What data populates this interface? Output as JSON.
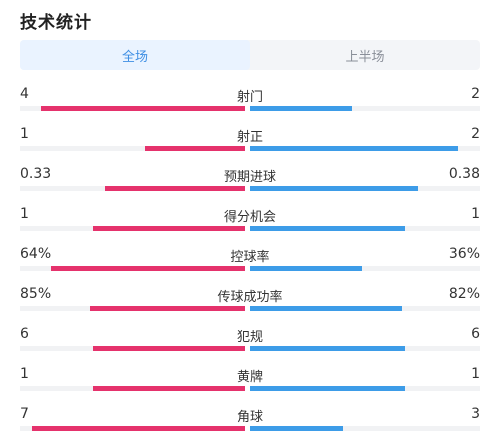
{
  "title": "技术统计",
  "tabs": [
    {
      "label": "全场",
      "active": true
    },
    {
      "label": "上半场",
      "active": false
    }
  ],
  "colors": {
    "home": "#e5326c",
    "away": "#3d9ce8",
    "active_tab": "#3f8fe4"
  },
  "stats": [
    {
      "name": "射门",
      "left": "4",
      "right": "2",
      "left_frac": 0.67,
      "right_frac": 0.33
    },
    {
      "name": "射正",
      "left": "1",
      "right": "2",
      "left_frac": 0.33,
      "right_frac": 0.67
    },
    {
      "name": "预期进球",
      "left": "0.33",
      "right": "0.38",
      "left_frac": 0.46,
      "right_frac": 0.54
    },
    {
      "name": "得分机会",
      "left": "1",
      "right": "1",
      "left_frac": 0.5,
      "right_frac": 0.5
    },
    {
      "name": "控球率",
      "left": "64%",
      "right": "36%",
      "left_frac": 0.64,
      "right_frac": 0.36
    },
    {
      "name": "传球成功率",
      "left": "85%",
      "right": "82%",
      "left_frac": 0.51,
      "right_frac": 0.49
    },
    {
      "name": "犯规",
      "left": "6",
      "right": "6",
      "left_frac": 0.5,
      "right_frac": 0.5
    },
    {
      "name": "黄牌",
      "left": "1",
      "right": "1",
      "left_frac": 0.5,
      "right_frac": 0.5
    },
    {
      "name": "角球",
      "left": "7",
      "right": "3",
      "left_frac": 0.7,
      "right_frac": 0.3
    }
  ]
}
